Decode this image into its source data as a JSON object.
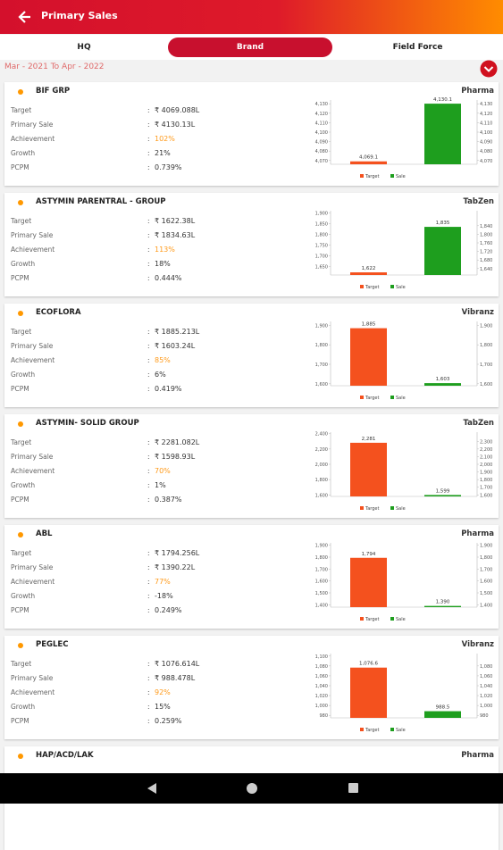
{
  "header": {
    "title": "Primary Sales"
  },
  "tabs": [
    "HQ",
    "Brand",
    "Field Force"
  ],
  "date_range": "Mar - 2021 To Apr - 2022",
  "separator": ":",
  "row_labels": [
    "Target",
    "Primary Sale",
    "Achievement",
    "Growth",
    "PCPM"
  ],
  "cards": [
    {
      "name": "BIF GRP",
      "division": "Pharma",
      "values": [
        "₹ 4069.088L",
        "₹ 4130.13L",
        "102%",
        "21%",
        "0.739%"
      ],
      "chart": {
        "type": "bar",
        "legend": [
          "Target",
          "Sale"
        ],
        "colors": [
          "#f4511e",
          "#1e9e1e"
        ],
        "values": [
          4069.088,
          4130.13
        ],
        "value_labels": [
          "4,069.1",
          "4,130.1"
        ],
        "ylim": [
          4066,
          4134
        ],
        "yticks": [
          {
            "value": 4070,
            "label": "4,070"
          },
          {
            "value": 4080,
            "label": "4,080"
          },
          {
            "value": 4090,
            "label": "4,090"
          },
          {
            "value": 4100,
            "label": "4,100"
          },
          {
            "value": 4110,
            "label": "4,110"
          },
          {
            "value": 4120,
            "label": "4,120"
          },
          {
            "value": 4130,
            "label": "4,130"
          }
        ],
        "y2lim": [
          4066,
          4134
        ],
        "y2ticks": [
          {
            "value": 4070,
            "label": "4,070"
          },
          {
            "value": 4080,
            "label": "4,080"
          },
          {
            "value": 4090,
            "label": "4,090"
          },
          {
            "value": 4100,
            "label": "4,100"
          },
          {
            "value": 4110,
            "label": "4,110"
          },
          {
            "value": 4120,
            "label": "4,120"
          },
          {
            "value": 4130,
            "label": "4,130"
          }
        ]
      }
    },
    {
      "name": "ASTYMIN PARENTRAL - GROUP",
      "division": "TabZen",
      "values": [
        "₹ 1622.38L",
        "₹ 1834.63L",
        "113%",
        "18%",
        "0.444%"
      ],
      "chart": {
        "type": "bar",
        "legend": [
          "Target",
          "Sale"
        ],
        "colors": [
          "#f4511e",
          "#1e9e1e"
        ],
        "values": [
          1622.38,
          1834.63
        ],
        "value_labels": [
          "1,622",
          "1,835"
        ],
        "ylim": [
          1610,
          1910
        ],
        "yticks": [
          {
            "value": 1650,
            "label": "1,650"
          },
          {
            "value": 1700,
            "label": "1,700"
          },
          {
            "value": 1750,
            "label": "1,750"
          },
          {
            "value": 1800,
            "label": "1,800"
          },
          {
            "value": 1850,
            "label": "1,850"
          },
          {
            "value": 1900,
            "label": "1,900"
          }
        ],
        "y2lim": [
          1610,
          1910
        ],
        "y2ticks": [
          {
            "value": 1640,
            "label": "1,640"
          },
          {
            "value": 1680,
            "label": "1,680"
          },
          {
            "value": 1720,
            "label": "1,720"
          },
          {
            "value": 1760,
            "label": "1,760"
          },
          {
            "value": 1800,
            "label": "1,800"
          },
          {
            "value": 1840,
            "label": "1,840"
          }
        ]
      }
    },
    {
      "name": "ECOFLORA",
      "division": "Vibranz",
      "values": [
        "₹ 1885.213L",
        "₹ 1603.24L",
        "85%",
        "6%",
        "0.419%"
      ],
      "chart": {
        "type": "bar",
        "legend": [
          "Target",
          "Sale"
        ],
        "colors": [
          "#f4511e",
          "#1e9e1e"
        ],
        "values": [
          1885.213,
          1603.24
        ],
        "value_labels": [
          "1,885",
          "1,603"
        ],
        "ylim": [
          1590,
          1920
        ],
        "yticks": [
          {
            "value": 1600,
            "label": "1,600"
          },
          {
            "value": 1700,
            "label": "1,700"
          },
          {
            "value": 1800,
            "label": "1,800"
          },
          {
            "value": 1900,
            "label": "1,900"
          }
        ],
        "y2lim": [
          1590,
          1920
        ],
        "y2ticks": [
          {
            "value": 1600,
            "label": "1,600"
          },
          {
            "value": 1700,
            "label": "1,700"
          },
          {
            "value": 1800,
            "label": "1,800"
          },
          {
            "value": 1900,
            "label": "1,900"
          }
        ]
      }
    },
    {
      "name": "ASTYMIN- SOLID GROUP",
      "division": "TabZen",
      "values": [
        "₹ 2281.082L",
        "₹ 1598.93L",
        "70%",
        "1%",
        "0.387%"
      ],
      "chart": {
        "type": "bar",
        "legend": [
          "Target",
          "Sale"
        ],
        "colors": [
          "#f4511e",
          "#1e9e1e"
        ],
        "values": [
          2281.082,
          1598.93
        ],
        "value_labels": [
          "2,281",
          "1,599"
        ],
        "ylim": [
          1580,
          2420
        ],
        "yticks": [
          {
            "value": 1600,
            "label": "1,600"
          },
          {
            "value": 1800,
            "label": "1,800"
          },
          {
            "value": 2000,
            "label": "2,000"
          },
          {
            "value": 2200,
            "label": "2,200"
          },
          {
            "value": 2400,
            "label": "2,400"
          }
        ],
        "y2lim": [
          1580,
          2420
        ],
        "y2ticks": [
          {
            "value": 1600,
            "label": "1,600"
          },
          {
            "value": 1700,
            "label": "1,700"
          },
          {
            "value": 1800,
            "label": "1,800"
          },
          {
            "value": 1900,
            "label": "1,900"
          },
          {
            "value": 2000,
            "label": "2,000"
          },
          {
            "value": 2100,
            "label": "2,100"
          },
          {
            "value": 2200,
            "label": "2,200"
          },
          {
            "value": 2300,
            "label": "2,300"
          }
        ]
      }
    },
    {
      "name": "ABL",
      "division": "Pharma",
      "values": [
        "₹ 1794.256L",
        "₹ 1390.22L",
        "77%",
        "-18%",
        "0.249%"
      ],
      "chart": {
        "type": "bar",
        "legend": [
          "Target",
          "Sale"
        ],
        "colors": [
          "#f4511e",
          "#1e9e1e"
        ],
        "values": [
          1794.256,
          1390.22
        ],
        "value_labels": [
          "1,794",
          "1,390"
        ],
        "ylim": [
          1380,
          1920
        ],
        "yticks": [
          {
            "value": 1400,
            "label": "1,400"
          },
          {
            "value": 1500,
            "label": "1,500"
          },
          {
            "value": 1600,
            "label": "1,600"
          },
          {
            "value": 1700,
            "label": "1,700"
          },
          {
            "value": 1800,
            "label": "1,800"
          },
          {
            "value": 1900,
            "label": "1,900"
          }
        ],
        "y2lim": [
          1380,
          1920
        ],
        "y2ticks": [
          {
            "value": 1400,
            "label": "1,400"
          },
          {
            "value": 1500,
            "label": "1,500"
          },
          {
            "value": 1600,
            "label": "1,600"
          },
          {
            "value": 1700,
            "label": "1,700"
          },
          {
            "value": 1800,
            "label": "1,800"
          },
          {
            "value": 1900,
            "label": "1,900"
          }
        ]
      }
    },
    {
      "name": "PEGLEC",
      "division": "Vibranz",
      "values": [
        "₹ 1076.614L",
        "₹ 988.478L",
        "92%",
        "15%",
        "0.259%"
      ],
      "chart": {
        "type": "bar",
        "legend": [
          "Target",
          "Sale"
        ],
        "colors": [
          "#f4511e",
          "#1e9e1e"
        ],
        "values": [
          1076.614,
          988.478
        ],
        "value_labels": [
          "1,076.6",
          "988.5"
        ],
        "ylim": [
          975,
          1105
        ],
        "yticks": [
          980,
          {
            "value": 1000,
            "label": "1,000"
          },
          {
            "value": 1020,
            "label": "1,020"
          },
          {
            "value": 1040,
            "label": "1,040"
          },
          {
            "value": 1060,
            "label": "1,060"
          },
          {
            "value": 1080,
            "label": "1,080"
          },
          {
            "value": 1100,
            "label": "1,100"
          }
        ],
        "y2lim": [
          975,
          1105
        ],
        "y2ticks": [
          980,
          {
            "value": 1000,
            "label": "1,000"
          },
          {
            "value": 1020,
            "label": "1,020"
          },
          {
            "value": 1040,
            "label": "1,040"
          },
          {
            "value": 1060,
            "label": "1,060"
          },
          {
            "value": 1080,
            "label": "1,080"
          }
        ]
      }
    },
    {
      "name": "HAP/ACD/LAK",
      "division": "Pharma"
    }
  ]
}
